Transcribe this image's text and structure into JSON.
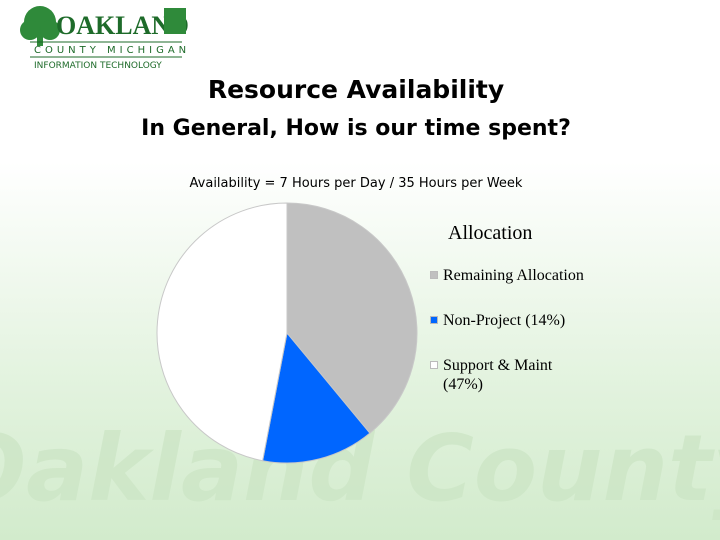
{
  "logo": {
    "name": "OAKLAND",
    "county": "COUNTY MICHIGAN",
    "department": "INFORMATION TECHNOLOGY"
  },
  "watermark": "Oakland County",
  "chart_data": {
    "type": "pie",
    "title": "Resource Availability",
    "subtitle": "In General, How is our time spent?",
    "note": "Availability = 7 Hours per Day / 35 Hours per Week",
    "legend_title": "Allocation",
    "categories": [
      "Remaining Allocation",
      "Non-Project (14%)",
      "Support & Maint (47%)"
    ],
    "values": [
      39,
      14,
      47
    ],
    "colors": [
      "#c0c0c0",
      "#0066ff",
      "#ffffff"
    ]
  }
}
